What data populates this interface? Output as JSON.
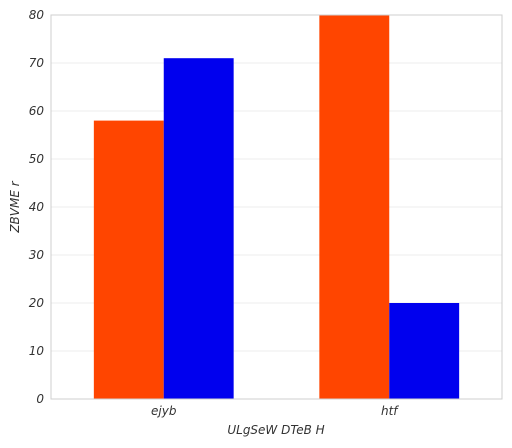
{
  "chart_data": {
    "type": "bar",
    "title": "",
    "xlabel": "ULgSeW DTeB H",
    "ylabel": "ZBVME r",
    "categories": [
      "ejyb",
      "htf"
    ],
    "series": [
      {
        "values": [
          58,
          80
        ],
        "color": "#ff4500"
      },
      {
        "values": [
          71,
          20
        ],
        "color": "#0000ee"
      }
    ],
    "ylim": [
      0,
      80
    ],
    "yticks": [
      0,
      10,
      20,
      30,
      40,
      50,
      60,
      70,
      80
    ],
    "grid": true,
    "legend": "none"
  }
}
